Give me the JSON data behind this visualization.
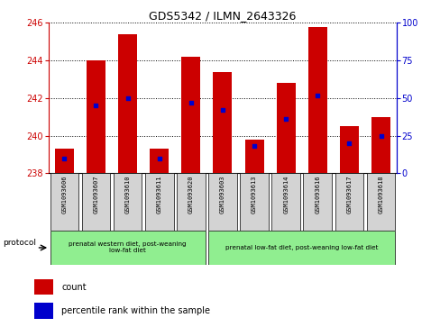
{
  "title": "GDS5342 / ILMN_2643326",
  "samples": [
    "GSM1093606",
    "GSM1093607",
    "GSM1093610",
    "GSM1093611",
    "GSM1093620",
    "GSM1093603",
    "GSM1093613",
    "GSM1093614",
    "GSM1093616",
    "GSM1093617",
    "GSM1093618"
  ],
  "count_values": [
    239.3,
    244.0,
    245.4,
    239.3,
    244.2,
    243.4,
    239.8,
    242.8,
    245.8,
    240.5,
    241.0
  ],
  "percentile_values": [
    10,
    45,
    50,
    10,
    47,
    42,
    18,
    36,
    52,
    20,
    25
  ],
  "ymin": 238,
  "ymax": 246,
  "yticks": [
    238,
    240,
    242,
    244,
    246
  ],
  "y2min": 0,
  "y2max": 100,
  "y2ticks": [
    0,
    25,
    50,
    75,
    100
  ],
  "bar_color": "#cc0000",
  "dot_color": "#0000cc",
  "bar_width": 0.6,
  "left_axis_color": "#cc0000",
  "right_axis_color": "#0000cc",
  "bg_plot": "#ffffff",
  "bg_fig": "#ffffff",
  "group1_samples": [
    "GSM1093606",
    "GSM1093607",
    "GSM1093610",
    "GSM1093611",
    "GSM1093620"
  ],
  "group2_samples": [
    "GSM1093603",
    "GSM1093613",
    "GSM1093614",
    "GSM1093616",
    "GSM1093617",
    "GSM1093618"
  ],
  "group1_label": "prenatal western diet, post-weaning\nlow-fat diet",
  "group2_label": "prenatal low-fat diet, post-weaning low-fat diet",
  "group_bg": "#90ee90",
  "sample_bg": "#d3d3d3",
  "protocol_label": "protocol",
  "legend_count": "count",
  "legend_pct": "percentile rank within the sample"
}
